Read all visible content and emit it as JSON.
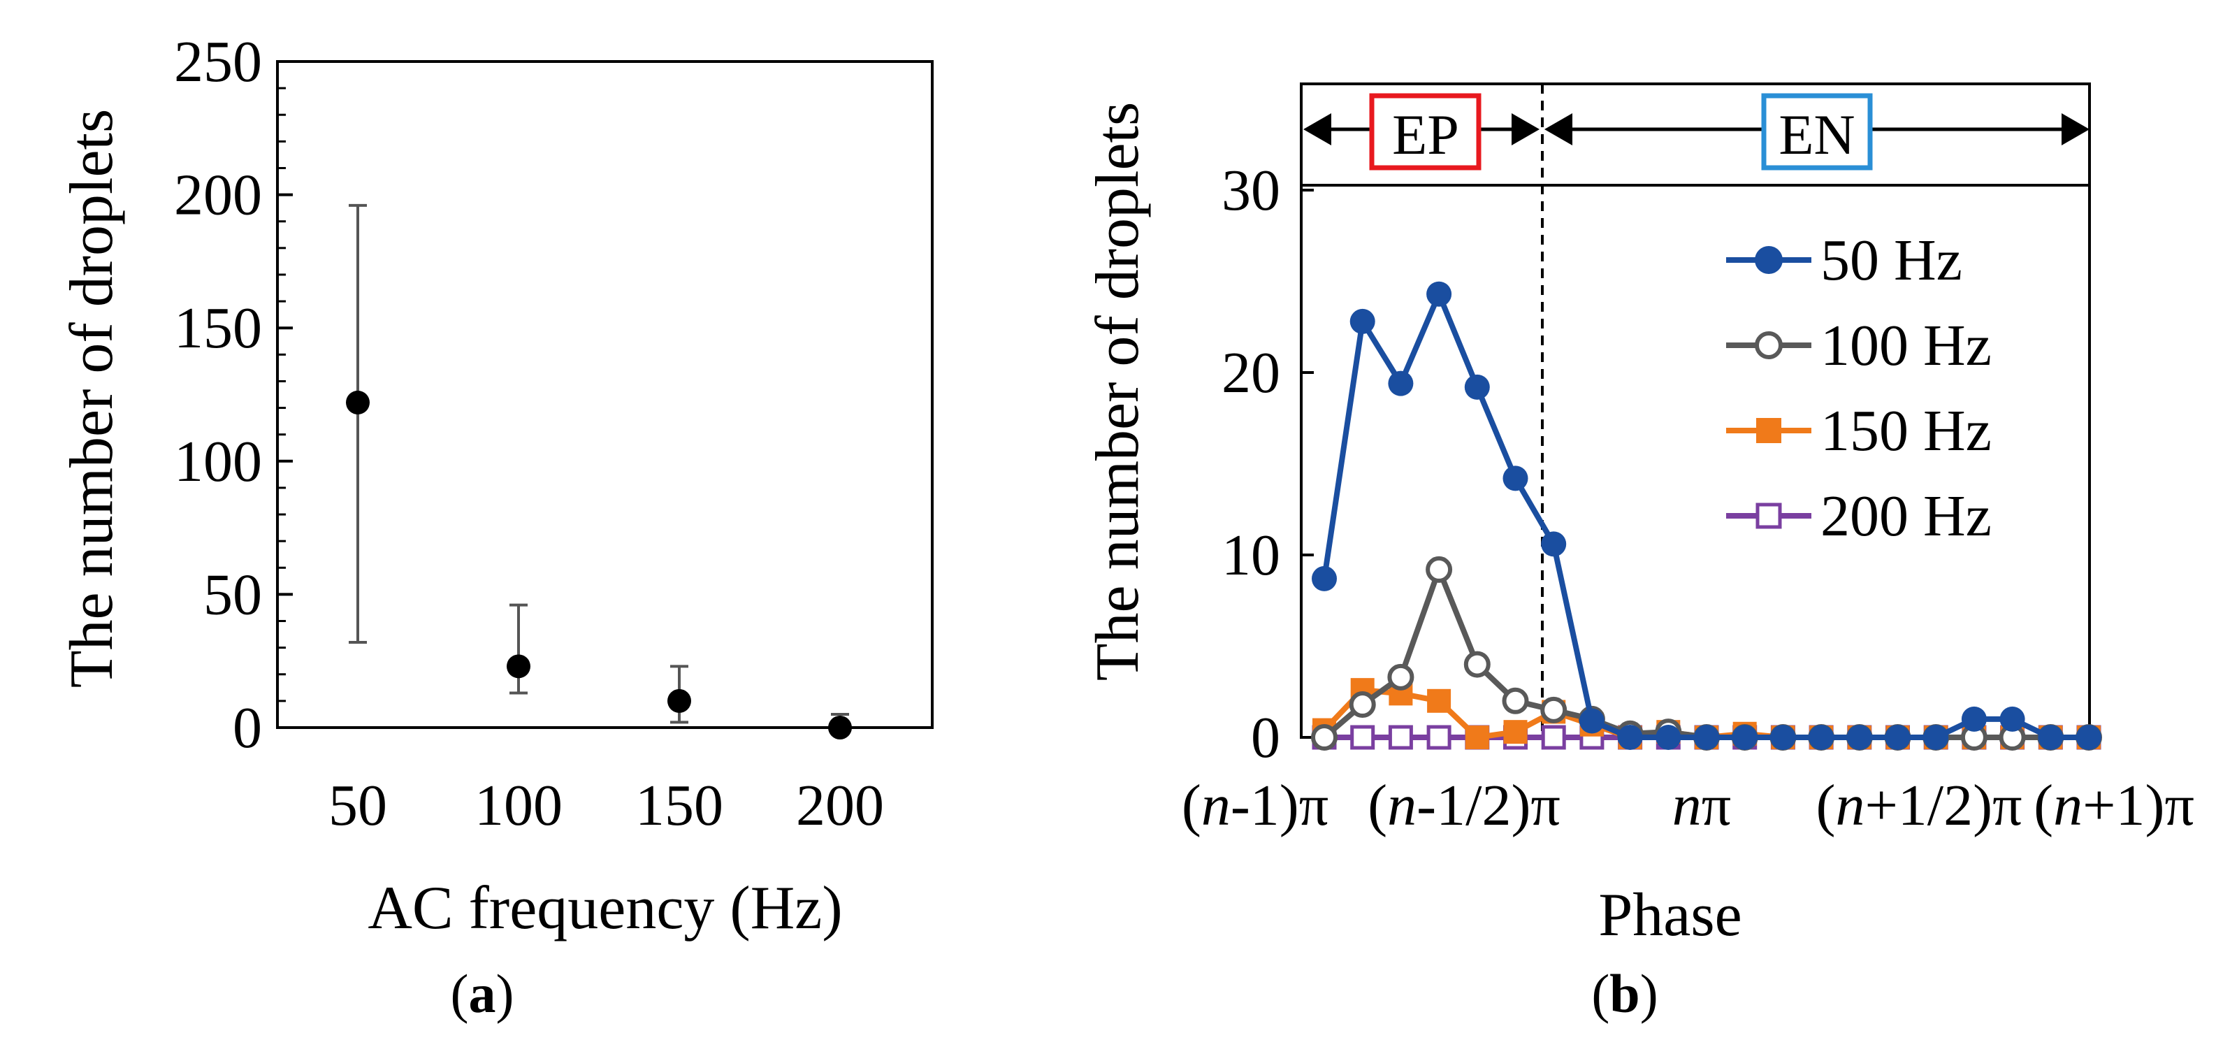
{
  "panel_a": {
    "label": "a",
    "colors": {
      "marker": "#000000",
      "error_bar": "#555555",
      "axis": "#000000"
    },
    "chart_data": {
      "type": "scatter",
      "xlabel": "AC frequency (Hz)",
      "ylabel": "The number of droplets",
      "categories": [
        "50",
        "100",
        "150",
        "200"
      ],
      "values": [
        122,
        23,
        10,
        0
      ],
      "error_low": [
        32,
        13,
        2,
        0
      ],
      "error_high": [
        196,
        46,
        23,
        5
      ],
      "ylim": [
        0,
        250
      ],
      "yticks": [
        "0",
        "50",
        "100",
        "150",
        "200",
        "250"
      ],
      "grid": false
    }
  },
  "panel_b": {
    "label": "b",
    "region_labels": [
      "EP",
      "EN"
    ],
    "colors": {
      "ep_box": "#e8191f",
      "en_box": "#2a8fd6",
      "s50": "#1a4ea0",
      "s100": "#595959",
      "s150": "#f07a1a",
      "s200": "#7a3fa0"
    },
    "chart_data": {
      "type": "line",
      "xlabel": "Phase",
      "ylabel": "The number of droplets",
      "x_tick_labels": [
        {
          "pre": "(",
          "var": "n",
          "post": "-1)π"
        },
        {
          "pre": "(",
          "var": "n",
          "post": "-1/2)π"
        },
        {
          "pre": "",
          "var": "n",
          "post": "π"
        },
        {
          "pre": "(",
          "var": "n",
          "post": "+1/2)π"
        },
        {
          "pre": "(",
          "var": "n",
          "post": "+1)π"
        }
      ],
      "ylim": [
        0,
        30
      ],
      "yticks": [
        "0",
        "10",
        "20",
        "30"
      ],
      "points_per_series": 21,
      "divider_at_index": 6,
      "legend_position": "upper-right",
      "series": [
        {
          "name": "50 Hz",
          "marker": "filled-circle",
          "color": "#1a4ea0",
          "values": [
            8.7,
            22.8,
            19.4,
            24.3,
            19.2,
            14.2,
            10.6,
            0.9,
            0,
            0,
            0,
            0,
            0,
            0,
            0,
            0,
            0,
            1.0,
            1.0,
            0,
            0
          ]
        },
        {
          "name": "100 Hz",
          "marker": "open-circle",
          "color": "#595959",
          "values": [
            0,
            1.8,
            3.3,
            9.2,
            4.0,
            2.0,
            1.5,
            1.0,
            0.2,
            0.3,
            0,
            0,
            0,
            0,
            0,
            0,
            0,
            0,
            0,
            0,
            0
          ]
        },
        {
          "name": "150 Hz",
          "marker": "filled-square",
          "color": "#f07a1a",
          "values": [
            0.4,
            2.6,
            2.4,
            2.0,
            0,
            0.3,
            1.4,
            0.7,
            0,
            0.3,
            0,
            0.2,
            0,
            0,
            0,
            0,
            0,
            0,
            0,
            0,
            0
          ]
        },
        {
          "name": "200 Hz",
          "marker": "open-square",
          "color": "#7a3fa0",
          "values": [
            0,
            0,
            0,
            0,
            0,
            0,
            0,
            0,
            0,
            0,
            0,
            0,
            0,
            0,
            0,
            0,
            0,
            0,
            0,
            0,
            0
          ]
        }
      ]
    }
  }
}
